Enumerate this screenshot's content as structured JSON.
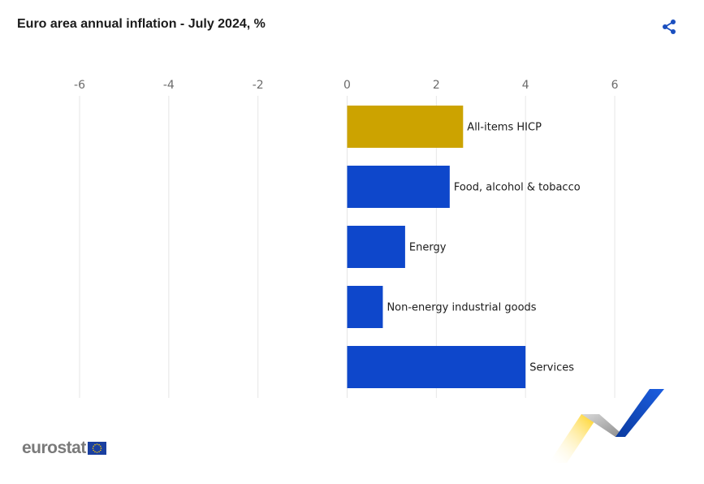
{
  "title": "Euro area annual inflation - July 2024, %",
  "icons": {
    "share": "share-icon",
    "flag": "eu-flag-icon"
  },
  "logo_text": "eurostat",
  "colors": {
    "highlight": "#cca300",
    "bar": "#0e47cb",
    "grid": "#e6e6e6"
  },
  "chart_data": {
    "type": "bar",
    "orientation": "horizontal",
    "title": "Euro area annual inflation - July 2024, %",
    "categories": [
      "All-items HICP",
      "Food, alcohol & tobacco",
      "Energy",
      "Non-energy industrial goods",
      "Services"
    ],
    "values": [
      2.6,
      2.3,
      1.3,
      0.8,
      4.0
    ],
    "bar_colors": [
      "#cca300",
      "#0e47cb",
      "#0e47cb",
      "#0e47cb",
      "#0e47cb"
    ],
    "xlim": [
      -6,
      7.3
    ],
    "xticks": [
      -6,
      -4,
      -2,
      0,
      2,
      4,
      6
    ],
    "xtick_labels": [
      "-6",
      "-4",
      "-2",
      "0",
      "2",
      "4",
      "6"
    ],
    "axis_position": "top",
    "grid": true,
    "legend": "none"
  }
}
